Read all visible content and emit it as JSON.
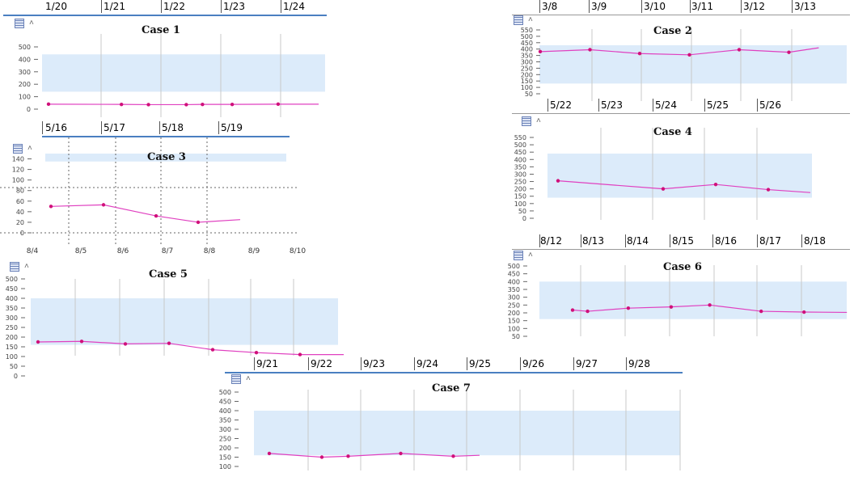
{
  "colors": {
    "line": "#e040c0",
    "point": "#d0107a",
    "band": "#dcebfa",
    "grid": "#c8c8c8",
    "datebar_underline": "#4a7fc1"
  },
  "icons": [
    "table-icon",
    "chevron-up-icon"
  ],
  "chart_data": [
    {
      "type": "line",
      "title": "Case 1",
      "dates": [
        "1/20",
        "1/21",
        "1/22",
        "1/23",
        "1/24"
      ],
      "yticks": [
        "500",
        "400",
        "300",
        "200",
        "100",
        "0"
      ],
      "ylim": [
        0,
        500
      ],
      "band": [
        140,
        440
      ],
      "series": [
        {
          "x": [
            0.0,
            1.35,
            1.85,
            2.55,
            2.85,
            3.4,
            4.25,
            5.0
          ],
          "y": [
            40,
            38,
            36,
            36,
            38,
            38,
            40,
            40
          ]
        }
      ]
    },
    {
      "type": "line",
      "title": "Case 2",
      "dates": [
        "3/8",
        "3/9",
        "3/10",
        "3/11",
        "3/12",
        "3/13"
      ],
      "yticks": [
        "550",
        "500",
        "450",
        "400",
        "350",
        "300",
        "250",
        "200",
        "150",
        "100",
        "50"
      ],
      "ylim": [
        50,
        550
      ],
      "band": [
        130,
        430
      ],
      "series": [
        {
          "x": [
            0.0,
            1.0,
            2.0,
            3.0,
            4.0,
            5.0,
            5.6
          ],
          "y": [
            380,
            395,
            365,
            355,
            395,
            375,
            410
          ]
        }
      ]
    },
    {
      "type": "line",
      "title": "Case 3",
      "dates": [
        "5/16",
        "5/17",
        "5/18",
        "5/19"
      ],
      "xticks": [
        "8/4",
        "8/5",
        "8/6",
        "8/7",
        "8/8",
        "8/9",
        "8/10"
      ],
      "yticks": [
        "140",
        "120",
        "100",
        "80",
        "60",
        "40",
        "20",
        "0"
      ],
      "ylim": [
        0,
        150
      ],
      "band": [
        135,
        150
      ],
      "series": [
        {
          "x": [
            0.0,
            1.25,
            2.5,
            3.5,
            4.5
          ],
          "y": [
            50,
            53,
            32,
            20,
            25
          ]
        }
      ]
    },
    {
      "type": "line",
      "title": "Case 4",
      "dates": [
        "5/22",
        "5/23",
        "5/24",
        "5/25",
        "5/26"
      ],
      "yticks": [
        "550",
        "500",
        "450",
        "400",
        "350",
        "300",
        "250",
        "200",
        "150",
        "100",
        "50",
        "0"
      ],
      "ylim": [
        0,
        550
      ],
      "band": [
        140,
        440
      ],
      "series": [
        {
          "x": [
            0.0,
            2.0,
            3.0,
            4.0,
            4.8
          ],
          "y": [
            255,
            200,
            230,
            195,
            175
          ]
        }
      ]
    },
    {
      "type": "line",
      "title": "Case 5",
      "yticks": [
        "500",
        "450",
        "400",
        "350",
        "300",
        "250",
        "200",
        "150",
        "100",
        "50",
        "0"
      ],
      "ylim": [
        0,
        500
      ],
      "band": [
        160,
        400
      ],
      "series": [
        {
          "x": [
            0.0,
            1.0,
            2.0,
            3.0,
            4.0,
            5.0,
            6.0,
            7.0
          ],
          "y": [
            175,
            178,
            165,
            168,
            135,
            120,
            110,
            110
          ]
        }
      ]
    },
    {
      "type": "line",
      "title": "Case 6",
      "dates": [
        "8/12",
        "8/13",
        "8/14",
        "8/15",
        "8/16",
        "8/17",
        "8/18"
      ],
      "yticks": [
        "500",
        "450",
        "400",
        "350",
        "300",
        "250",
        "200",
        "150",
        "100",
        "50"
      ],
      "ylim": [
        50,
        500
      ],
      "band": [
        160,
        400
      ],
      "series": [
        {
          "x": [
            0.0,
            0.35,
            1.3,
            2.3,
            3.2,
            4.4,
            5.4,
            6.4
          ],
          "y": [
            218,
            210,
            230,
            238,
            250,
            210,
            205,
            203
          ]
        }
      ]
    },
    {
      "type": "line",
      "title": "Case 7",
      "dates": [
        "9/21",
        "9/22",
        "9/23",
        "9/24",
        "9/25",
        "9/26",
        "9/27",
        "9/28"
      ],
      "yticks": [
        "500",
        "450",
        "400",
        "350",
        "300",
        "250",
        "200",
        "150",
        "100"
      ],
      "ylim": [
        100,
        500
      ],
      "band": [
        160,
        400
      ],
      "series": [
        {
          "x": [
            0.0,
            2.0,
            3.0,
            5.0,
            7.0,
            8.0
          ],
          "y": [
            170,
            150,
            155,
            170,
            155,
            160
          ]
        }
      ]
    }
  ]
}
